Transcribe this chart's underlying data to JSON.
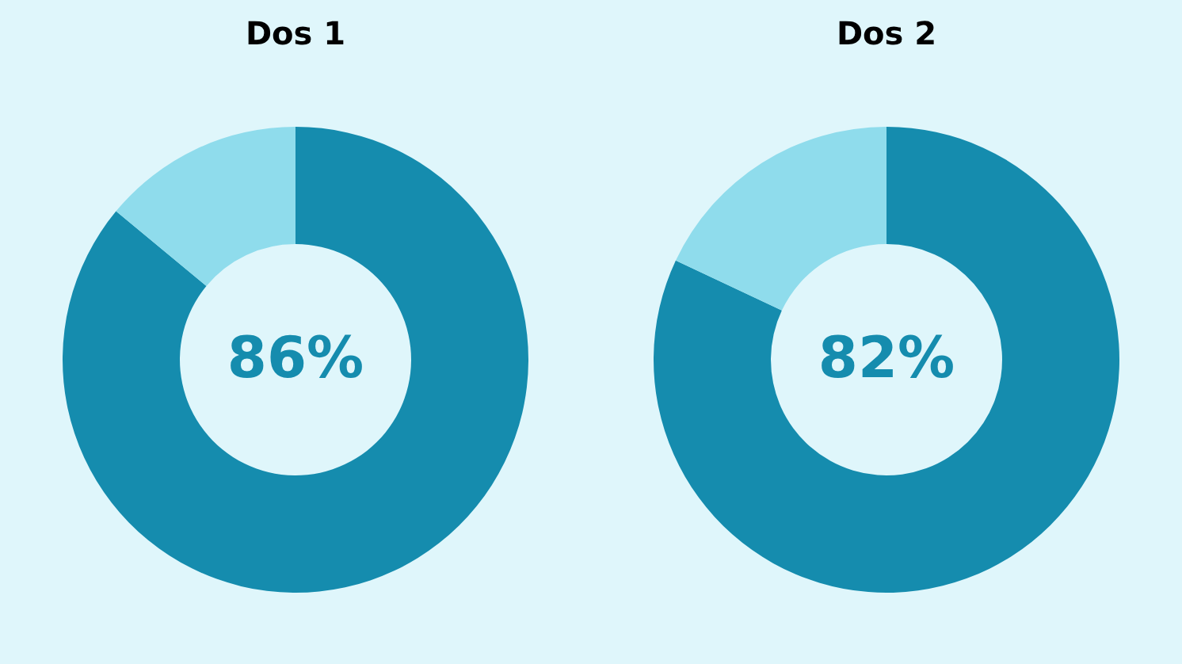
{
  "chart_data": [
    {
      "type": "donut",
      "title": "Dos 1",
      "categories": [
        null,
        null
      ],
      "values": [
        86,
        14
      ],
      "colors": [
        "#158cae",
        "#8fdcec"
      ],
      "value_labels": [
        "86%",
        null
      ]
    },
    {
      "type": "donut",
      "title": "Dos 2",
      "categories": [
        null,
        null
      ],
      "values": [
        82,
        18
      ],
      "colors": [
        "#158cae",
        "#8fdcec"
      ],
      "value_labels": [
        "82%",
        null
      ]
    }
  ]
}
